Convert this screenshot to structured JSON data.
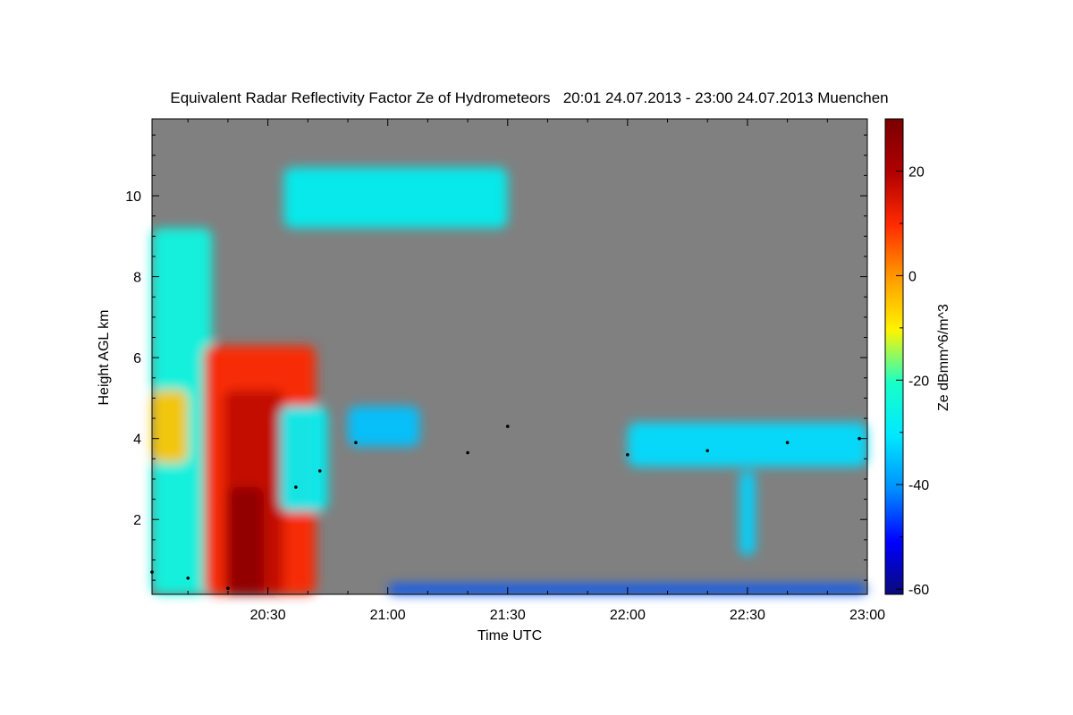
{
  "chart_data": {
    "type": "heatmap",
    "title": "Equivalent Radar Reflectivity Factor Ze of Hydrometeors   20:01 24.07.2013 - 23:00 24.07.2013 Muenchen",
    "xlabel": "Time UTC",
    "ylabel": "Height AGL km",
    "colorbar_label": "Ze dBmm^6/m^3",
    "x_unit": "minutes since 20:00 UTC",
    "xlim": [
      1,
      180
    ],
    "ylim": [
      0.15,
      11.9
    ],
    "x_ticks": [
      {
        "value": 30,
        "label": "20:30"
      },
      {
        "value": 60,
        "label": "21:00"
      },
      {
        "value": 90,
        "label": "21:30"
      },
      {
        "value": 120,
        "label": "22:00"
      },
      {
        "value": 150,
        "label": "22:30"
      },
      {
        "value": 180,
        "label": "23:00"
      }
    ],
    "y_ticks": [
      {
        "value": 2,
        "label": "2"
      },
      {
        "value": 4,
        "label": "4"
      },
      {
        "value": 6,
        "label": "6"
      },
      {
        "value": 8,
        "label": "8"
      },
      {
        "value": 10,
        "label": "10"
      }
    ],
    "colorbar_range": [
      -61,
      30
    ],
    "colorbar_ticks": [
      {
        "value": 20,
        "label": "20"
      },
      {
        "value": 0,
        "label": "0"
      },
      {
        "value": -20,
        "label": "-20"
      },
      {
        "value": -40,
        "label": "-40"
      },
      {
        "value": -60,
        "label": "-60"
      }
    ],
    "colormap": [
      "#0a0a7a",
      "#0000ff",
      "#0090ff",
      "#00e8ff",
      "#18ffc8",
      "#fff400",
      "#ff9a00",
      "#ff2a00",
      "#b00000",
      "#7a0000"
    ],
    "background_color": "#808080",
    "echoes": [
      {
        "x0": 1,
        "x1": 16,
        "y0": 0.15,
        "y1": 9.2,
        "ze": -25
      },
      {
        "x0": 1,
        "x1": 10,
        "y0": 3.4,
        "y1": 5.2,
        "ze": -5
      },
      {
        "x0": 14,
        "x1": 42,
        "y0": 0.15,
        "y1": 6.3,
        "ze": 10
      },
      {
        "x0": 19,
        "x1": 34,
        "y0": 0.15,
        "y1": 5.2,
        "ze": 18
      },
      {
        "x0": 20,
        "x1": 29,
        "y0": 0.15,
        "y1": 2.8,
        "ze": 26
      },
      {
        "x0": 33,
        "x1": 45,
        "y0": 2.2,
        "y1": 4.8,
        "ze": -28
      },
      {
        "x0": 34,
        "x1": 90,
        "y0": 9.2,
        "y1": 10.7,
        "ze": -28
      },
      {
        "x0": 50,
        "x1": 68,
        "y0": 3.8,
        "y1": 4.8,
        "ze": -35
      },
      {
        "x0": 120,
        "x1": 180,
        "y0": 3.3,
        "y1": 4.4,
        "ze": -32
      },
      {
        "x0": 148,
        "x1": 152,
        "y0": 1.1,
        "y1": 3.2,
        "ze": -33
      },
      {
        "x0": 60,
        "x1": 180,
        "y0": 0.15,
        "y1": 0.4,
        "ze": -45
      }
    ],
    "melting_layer": [
      {
        "x": 1,
        "y": 0.7
      },
      {
        "x": 10,
        "y": 0.55
      },
      {
        "x": 20,
        "y": 0.3
      },
      {
        "x": 37,
        "y": 2.8
      },
      {
        "x": 43,
        "y": 3.2
      },
      {
        "x": 52,
        "y": 3.9
      },
      {
        "x": 80,
        "y": 3.65
      },
      {
        "x": 90,
        "y": 4.3
      },
      {
        "x": 120,
        "y": 3.6
      },
      {
        "x": 140,
        "y": 3.7
      },
      {
        "x": 160,
        "y": 3.9
      },
      {
        "x": 178,
        "y": 4.0
      }
    ]
  }
}
